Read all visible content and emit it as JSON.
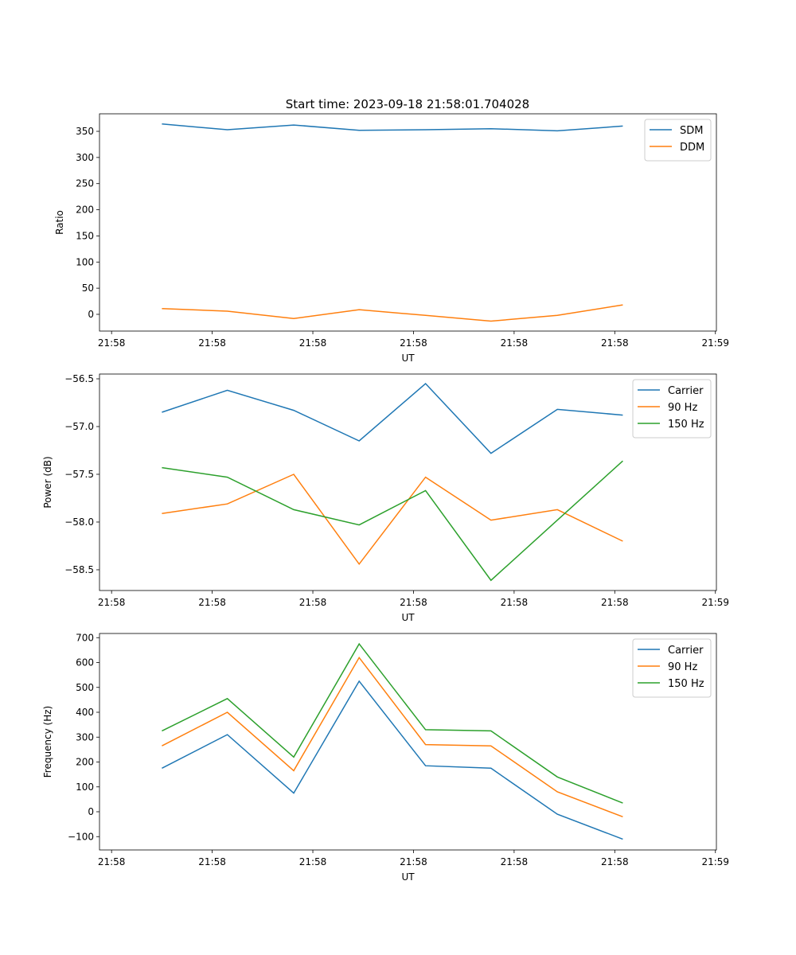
{
  "title": "Start time: 2023-09-18 21:58:01.704028",
  "chart_data": [
    {
      "type": "line",
      "xlabel": "UT",
      "ylabel": "Ratio",
      "x": [
        5.0,
        11.5,
        18.1,
        24.6,
        31.2,
        37.7,
        44.3,
        50.8
      ],
      "xlim": [
        -1.2,
        60.1
      ],
      "xticks": [
        0,
        10,
        20,
        30,
        40,
        50,
        60
      ],
      "xticklabels": [
        "21:58",
        "21:58",
        "21:58",
        "21:58",
        "21:58",
        "21:58",
        "21:59"
      ],
      "ylim": [
        -32,
        383.5
      ],
      "yticks": [
        0,
        50,
        100,
        150,
        200,
        250,
        300,
        350
      ],
      "yticklabels": [
        "0",
        "50",
        "100",
        "150",
        "200",
        "250",
        "300",
        "350"
      ],
      "legend": "top-right",
      "series": [
        {
          "name": "SDM",
          "color": "#1f77b4",
          "values": [
            364,
            353,
            362,
            352,
            353,
            355,
            351,
            360
          ]
        },
        {
          "name": "DDM",
          "color": "#ff7f0e",
          "values": [
            11,
            6,
            -8,
            9,
            -2,
            -13,
            -2,
            18
          ]
        }
      ]
    },
    {
      "type": "line",
      "xlabel": "UT",
      "ylabel": "Power (dB)",
      "x": [
        5.0,
        11.5,
        18.1,
        24.6,
        31.2,
        37.7,
        44.3,
        50.8
      ],
      "xlim": [
        -1.2,
        60.1
      ],
      "xticks": [
        0,
        10,
        20,
        30,
        40,
        50,
        60
      ],
      "xticklabels": [
        "21:58",
        "21:58",
        "21:58",
        "21:58",
        "21:58",
        "21:58",
        "21:59"
      ],
      "ylim": [
        -58.717,
        -56.45
      ],
      "yticks": [
        -58.5,
        -58.0,
        -57.5,
        -57.0,
        -56.5
      ],
      "yticklabels": [
        "−58.5",
        "−58.0",
        "−57.5",
        "−57.0",
        "−56.5"
      ],
      "legend": "top-right",
      "series": [
        {
          "name": "Carrier",
          "color": "#1f77b4",
          "values": [
            -56.85,
            -56.62,
            -56.83,
            -57.15,
            -56.55,
            -57.28,
            -56.82,
            -56.88
          ]
        },
        {
          "name": "90 Hz",
          "color": "#ff7f0e",
          "values": [
            -57.91,
            -57.81,
            -57.5,
            -58.44,
            -57.53,
            -57.98,
            -57.87,
            -58.2
          ]
        },
        {
          "name": "150 Hz",
          "color": "#2ca02c",
          "values": [
            -57.43,
            -57.53,
            -57.87,
            -58.03,
            -57.67,
            -58.61,
            -57.98,
            -57.36
          ]
        }
      ]
    },
    {
      "type": "line",
      "xlabel": "UT",
      "ylabel": "Frequency (Hz)",
      "x": [
        5.0,
        11.5,
        18.1,
        24.6,
        31.2,
        37.7,
        44.3,
        50.8
      ],
      "xlim": [
        -1.2,
        60.1
      ],
      "xticks": [
        0,
        10,
        20,
        30,
        40,
        50,
        60
      ],
      "xticklabels": [
        "21:58",
        "21:58",
        "21:58",
        "21:58",
        "21:58",
        "21:58",
        "21:59"
      ],
      "ylim": [
        -153.6,
        716.8
      ],
      "yticks": [
        -100,
        0,
        100,
        200,
        300,
        400,
        500,
        600,
        700
      ],
      "yticklabels": [
        "−100",
        "0",
        "100",
        "200",
        "300",
        "400",
        "500",
        "600",
        "700"
      ],
      "legend": "top-right",
      "series": [
        {
          "name": "Carrier",
          "color": "#1f77b4",
          "values": [
            175,
            310,
            75,
            525,
            185,
            175,
            -10,
            -110
          ]
        },
        {
          "name": "90 Hz",
          "color": "#ff7f0e",
          "values": [
            265,
            400,
            165,
            620,
            270,
            265,
            80,
            -20
          ]
        },
        {
          "name": "150 Hz",
          "color": "#2ca02c",
          "values": [
            325,
            455,
            220,
            675,
            330,
            325,
            140,
            35
          ]
        }
      ]
    }
  ]
}
